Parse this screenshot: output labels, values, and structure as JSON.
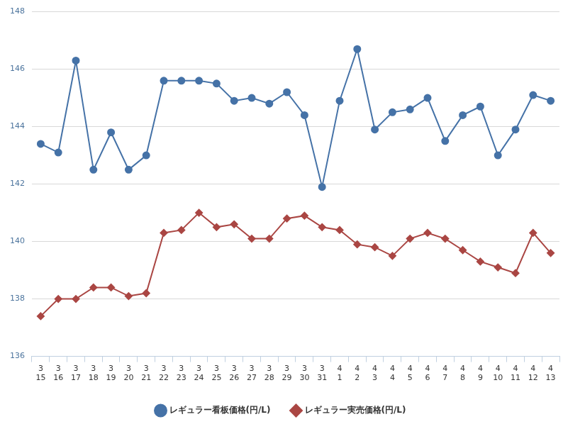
{
  "chart_data": {
    "type": "line",
    "categories": [
      [
        "3",
        "15"
      ],
      [
        "3",
        "16"
      ],
      [
        "3",
        "17"
      ],
      [
        "3",
        "18"
      ],
      [
        "3",
        "19"
      ],
      [
        "3",
        "20"
      ],
      [
        "3",
        "21"
      ],
      [
        "3",
        "22"
      ],
      [
        "3",
        "23"
      ],
      [
        "3",
        "24"
      ],
      [
        "3",
        "25"
      ],
      [
        "3",
        "26"
      ],
      [
        "3",
        "27"
      ],
      [
        "3",
        "28"
      ],
      [
        "3",
        "29"
      ],
      [
        "3",
        "30"
      ],
      [
        "3",
        "31"
      ],
      [
        "4",
        "1"
      ],
      [
        "4",
        "2"
      ],
      [
        "4",
        "3"
      ],
      [
        "4",
        "4"
      ],
      [
        "4",
        "5"
      ],
      [
        "4",
        "6"
      ],
      [
        "4",
        "7"
      ],
      [
        "4",
        "8"
      ],
      [
        "4",
        "9"
      ],
      [
        "4",
        "10"
      ],
      [
        "4",
        "11"
      ],
      [
        "4",
        "12"
      ],
      [
        "4",
        "13"
      ]
    ],
    "series": [
      {
        "name": "レギュラー看板価格(円/L)",
        "color": "#4572a7",
        "marker": "circle",
        "values": [
          143.4,
          143.1,
          146.3,
          142.5,
          143.8,
          142.5,
          143.0,
          145.6,
          145.6,
          145.6,
          145.5,
          144.9,
          145.0,
          144.8,
          145.2,
          144.4,
          141.9,
          144.9,
          146.7,
          143.9,
          144.5,
          144.6,
          145.0,
          143.5,
          144.4,
          144.7,
          143.0,
          143.9,
          145.1,
          144.9
        ]
      },
      {
        "name": "レギュラー実売価格(円/L)",
        "color": "#aa4643",
        "marker": "diamond",
        "values": [
          137.4,
          138.0,
          138.0,
          138.4,
          138.4,
          138.1,
          138.2,
          140.3,
          140.4,
          141.0,
          140.5,
          140.6,
          140.1,
          140.1,
          140.8,
          140.9,
          140.5,
          140.4,
          139.9,
          139.8,
          139.5,
          140.1,
          140.3,
          140.1,
          139.7,
          139.3,
          139.1,
          138.9,
          140.3,
          139.6
        ]
      }
    ],
    "ylim": [
      136,
      148
    ],
    "yticks": [
      136,
      138,
      140,
      142,
      144,
      146,
      148
    ],
    "grid": true,
    "legend": "bottom"
  }
}
